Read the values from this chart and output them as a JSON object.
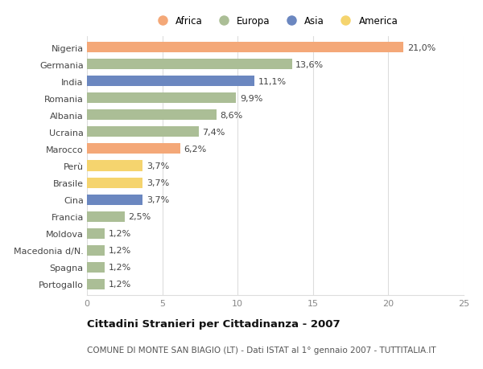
{
  "countries": [
    "Nigeria",
    "Germania",
    "India",
    "Romania",
    "Albania",
    "Ucraina",
    "Marocco",
    "Perù",
    "Brasile",
    "Cina",
    "Francia",
    "Moldova",
    "Macedonia d/N.",
    "Spagna",
    "Portogallo"
  ],
  "values": [
    21.0,
    13.6,
    11.1,
    9.9,
    8.6,
    7.4,
    6.2,
    3.7,
    3.7,
    3.7,
    2.5,
    1.2,
    1.2,
    1.2,
    1.2
  ],
  "continents": [
    "Africa",
    "Europa",
    "Asia",
    "Europa",
    "Europa",
    "Europa",
    "Africa",
    "America",
    "America",
    "Asia",
    "Europa",
    "Europa",
    "Europa",
    "Europa",
    "Europa"
  ],
  "colors": {
    "Africa": "#F4A878",
    "Europa": "#ABBE96",
    "Asia": "#6B87C0",
    "America": "#F5D46E"
  },
  "legend_order": [
    "Africa",
    "Europa",
    "Asia",
    "America"
  ],
  "xlim": [
    0,
    25
  ],
  "xticks": [
    0,
    5,
    10,
    15,
    20,
    25
  ],
  "title": "Cittadini Stranieri per Cittadinanza - 2007",
  "subtitle": "COMUNE DI MONTE SAN BIAGIO (LT) - Dati ISTAT al 1° gennaio 2007 - TUTTITALIA.IT",
  "bar_height": 0.62,
  "background_color": "#ffffff",
  "label_fontsize": 8,
  "title_fontsize": 9.5,
  "subtitle_fontsize": 7.5,
  "grid_color": "#dddddd"
}
